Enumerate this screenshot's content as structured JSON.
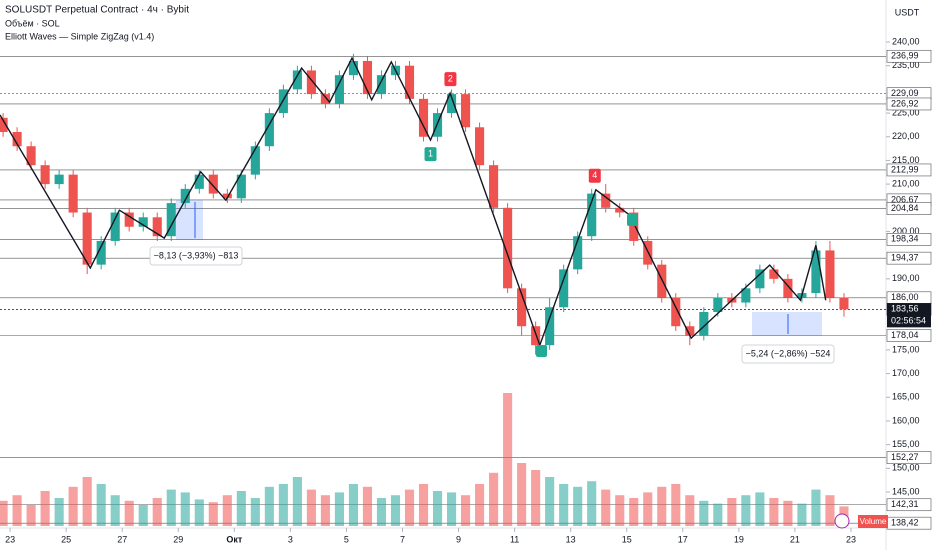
{
  "chart_data": {
    "type": "candlestick",
    "title": "SOLUSDT Perpetual Contract · 4ч · Bybit",
    "volume_title": "Объём · SOL",
    "indicator": "Elliott Waves — Simple ZigZag (v1.4)",
    "currency": "USDT",
    "volume_badge": "Volume",
    "countdown": "02:56:54",
    "up_color": "#26a69a",
    "down_color": "#ef5350",
    "x": [
      -0.25,
      0.25,
      0.75,
      1.25,
      1.75,
      2.25,
      2.75,
      3.25,
      3.75,
      4.25,
      4.75,
      5.25,
      5.75,
      6.25,
      6.75,
      7.25,
      7.75,
      8.25,
      8.75,
      9.25,
      9.75,
      10.25,
      10.75,
      11.25,
      11.75,
      12.25,
      12.75,
      13.25,
      13.75,
      14.25,
      14.75,
      15.25,
      15.75,
      16.25,
      16.75,
      17.25,
      17.75,
      18.25,
      18.75,
      19.25,
      19.75,
      20.25,
      20.75,
      21.25,
      21.75,
      22.25,
      22.75,
      23.25,
      23.75,
      24.25,
      24.75,
      25.25,
      25.75,
      26.25,
      26.75,
      27.25,
      27.75,
      28.25,
      28.75,
      29.25,
      29.75
    ],
    "open": [
      224,
      221,
      218,
      214,
      210,
      212,
      204,
      193,
      198,
      204,
      201,
      203,
      199,
      206,
      209,
      212,
      208,
      207,
      212,
      218,
      225,
      230,
      234,
      229,
      227,
      233,
      236,
      229,
      233,
      235,
      228,
      220,
      225,
      229,
      222,
      214,
      205,
      188,
      180,
      176,
      184,
      192,
      199,
      208,
      205,
      204,
      198,
      193,
      186,
      180,
      178,
      183,
      186,
      185,
      188,
      192,
      190,
      186,
      187,
      196,
      186
    ],
    "high": [
      225,
      222,
      219,
      215,
      213,
      213,
      205,
      199,
      205,
      205,
      204,
      204,
      207,
      210,
      213,
      213,
      209,
      213,
      219,
      226,
      231,
      235,
      235,
      230,
      234,
      237.5,
      237,
      234,
      236,
      236,
      229,
      226,
      230,
      230,
      223,
      215,
      206,
      189,
      181,
      186,
      193,
      200,
      209,
      210,
      206,
      205,
      199,
      194,
      187,
      181,
      184,
      187,
      187,
      189,
      193,
      193,
      191,
      188,
      198,
      198,
      187
    ],
    "low": [
      220,
      217,
      213,
      209,
      209,
      203,
      191,
      192,
      197,
      200,
      200,
      198,
      198,
      205,
      208,
      207,
      206,
      206,
      211,
      217,
      224,
      229,
      228,
      226,
      226,
      232,
      228,
      228,
      232,
      227,
      219,
      219,
      224,
      221,
      213,
      204,
      187,
      178,
      174,
      175,
      183,
      191,
      198,
      204,
      203,
      197,
      192,
      185,
      179,
      176,
      177,
      182,
      184,
      184,
      187,
      189,
      185,
      185,
      186,
      185,
      182
    ],
    "close": [
      221,
      218,
      214,
      210,
      212,
      204,
      193,
      198,
      204,
      201,
      203,
      199,
      206,
      209,
      212,
      208,
      207,
      212,
      218,
      225,
      230,
      234,
      229,
      227,
      233,
      236,
      229,
      233,
      235,
      228,
      220,
      225,
      229,
      222,
      214,
      205,
      188,
      180,
      176,
      184,
      192,
      199,
      208,
      205,
      204,
      198,
      193,
      186,
      180,
      178,
      183,
      186,
      185,
      188,
      192,
      190,
      186,
      187,
      196,
      186,
      183.56
    ],
    "volume": [
      18,
      22,
      15,
      25,
      20,
      28,
      35,
      30,
      22,
      18,
      15,
      20,
      26,
      24,
      19,
      17,
      22,
      25,
      20,
      28,
      30,
      35,
      26,
      22,
      24,
      30,
      28,
      20,
      22,
      26,
      30,
      25,
      24,
      22,
      30,
      38,
      95,
      45,
      40,
      35,
      30,
      28,
      32,
      26,
      22,
      20,
      24,
      28,
      30,
      22,
      18,
      16,
      20,
      22,
      24,
      20,
      18,
      16,
      26,
      22,
      14
    ],
    "volume_ylim": [
      0,
      100
    ],
    "xlim": [
      -0.36,
      31.25
    ],
    "xticks": [
      {
        "value": 0,
        "label": "23"
      },
      {
        "value": 2,
        "label": "25"
      },
      {
        "value": 4,
        "label": "27"
      },
      {
        "value": 6,
        "label": "29"
      },
      {
        "value": 8,
        "label": "Окт"
      },
      {
        "value": 10,
        "label": "3"
      },
      {
        "value": 12,
        "label": "5"
      },
      {
        "value": 14,
        "label": "7"
      },
      {
        "value": 16,
        "label": "9"
      },
      {
        "value": 18,
        "label": "11"
      },
      {
        "value": 20,
        "label": "13"
      },
      {
        "value": 22,
        "label": "15"
      },
      {
        "value": 24,
        "label": "17"
      },
      {
        "value": 26,
        "label": "19"
      },
      {
        "value": 28,
        "label": "21"
      },
      {
        "value": 30,
        "label": "23"
      }
    ],
    "ylim": [
      137.4,
      248.87
    ],
    "yticks": [
      {
        "value": 240,
        "label": "240,00"
      },
      {
        "value": 235,
        "label": "235,00"
      },
      {
        "value": 225,
        "label": "225,00"
      },
      {
        "value": 220,
        "label": "220,00"
      },
      {
        "value": 215,
        "label": "215,00"
      },
      {
        "value": 210,
        "label": "210,00"
      },
      {
        "value": 200,
        "label": "200,00"
      },
      {
        "value": 190,
        "label": "190,00"
      },
      {
        "value": 175,
        "label": "175,00"
      },
      {
        "value": 170,
        "label": "170,00"
      },
      {
        "value": 165,
        "label": "165,00"
      },
      {
        "value": 160,
        "label": "160,00"
      },
      {
        "value": 155,
        "label": "155,00"
      },
      {
        "value": 150,
        "label": "150,00"
      },
      {
        "value": 145,
        "label": "145,00"
      }
    ],
    "levels": [
      {
        "value": 236.99,
        "label": "236,99",
        "style": "solid"
      },
      {
        "value": 229.09,
        "label": "229,09",
        "style": "dotted"
      },
      {
        "value": 226.92,
        "label": "226,92",
        "style": "solid"
      },
      {
        "value": 212.99,
        "label": "212,99",
        "style": "solid"
      },
      {
        "value": 206.67,
        "label": "206,67",
        "style": "solid"
      },
      {
        "value": 204.84,
        "label": "204,84",
        "style": "solid"
      },
      {
        "value": 198.34,
        "label": "198,34",
        "style": "solid"
      },
      {
        "value": 194.37,
        "label": "194,37",
        "style": "solid"
      },
      {
        "value": 186.0,
        "label": "186,00",
        "style": "solid"
      },
      {
        "value": 183.56,
        "label": "183,56",
        "style": "current"
      },
      {
        "value": 178.04,
        "label": "178,04",
        "style": "solid"
      },
      {
        "value": 152.27,
        "label": "152,27",
        "style": "solid"
      },
      {
        "value": 142.31,
        "label": "142,31",
        "style": "solid"
      },
      {
        "value": 138.42,
        "label": "138,42",
        "style": "solid"
      }
    ],
    "zigzag": {
      "x": [
        -0.36,
        2.86,
        3.9,
        5.5,
        6.8,
        7.7,
        10.4,
        11.4,
        12.2,
        12.9,
        13.6,
        15.0,
        15.7,
        18.9,
        20.9,
        22.1,
        24.3,
        27.1,
        28.2,
        28.75,
        29.1
      ],
      "values": [
        224.6,
        192.3,
        204.5,
        198.6,
        212.6,
        206.6,
        234.5,
        227.3,
        236.6,
        227.8,
        235.8,
        219.3,
        229.2,
        176,
        208.8,
        203.5,
        177.5,
        192.9,
        185.5,
        197.1,
        185.5
      ]
    },
    "waves": [
      {
        "label": "2",
        "x": 15.71,
        "value": 229.2,
        "color": "#f23645",
        "side": "above"
      },
      {
        "label": "1",
        "x": 15.0,
        "value": 219.3,
        "color": "#22ab94",
        "side": "below"
      },
      {
        "label": "4",
        "x": 20.86,
        "value": 208.8,
        "color": "#f23645",
        "side": "above"
      }
    ],
    "measures": [
      {
        "label": "−8,13 (−3,93%) −813"
      },
      {
        "label": "−5,24 (−2,86%) −524"
      }
    ]
  }
}
